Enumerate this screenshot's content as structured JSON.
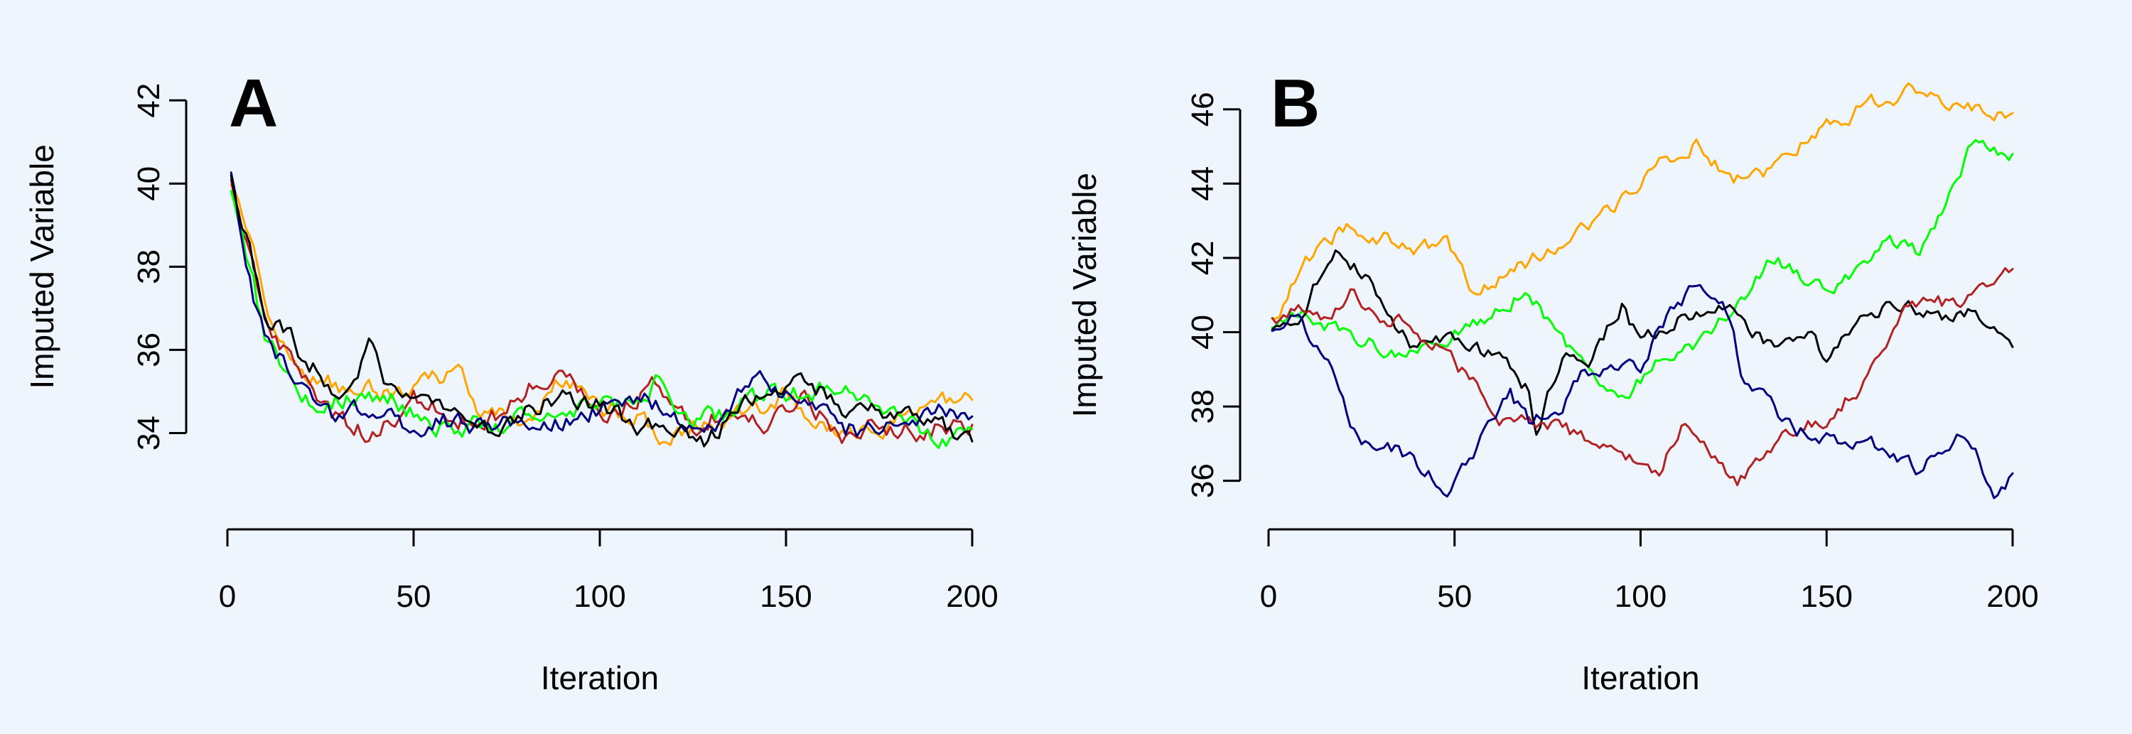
{
  "chart_data": [
    {
      "type": "line",
      "panel_label": "A",
      "xlabel": "Iteration",
      "ylabel": "Imputed Variable",
      "xlim": [
        0,
        200
      ],
      "ylim": [
        33.0,
        42.5
      ],
      "xticks": [
        0,
        50,
        100,
        150,
        200
      ],
      "yticks": [
        34,
        36,
        38,
        40,
        42
      ],
      "grid": false,
      "legend": "none",
      "series": [
        {
          "color": "#ffa500",
          "anchors": [
            [
              1,
              39.8
            ],
            [
              6,
              38.6
            ],
            [
              12,
              36.8
            ],
            [
              20,
              35.5
            ],
            [
              30,
              35.1
            ],
            [
              45,
              34.9
            ],
            [
              55,
              35.3
            ],
            [
              62,
              35.6
            ],
            [
              68,
              34.4
            ],
            [
              80,
              34.3
            ],
            [
              90,
              35.3
            ],
            [
              100,
              34.6
            ],
            [
              110,
              34.5
            ],
            [
              118,
              33.8
            ],
            [
              125,
              34.2
            ],
            [
              140,
              34.5
            ],
            [
              150,
              34.9
            ],
            [
              160,
              34.1
            ],
            [
              170,
              34.0
            ],
            [
              180,
              34.3
            ],
            [
              190,
              34.5
            ],
            [
              196,
              34.9
            ],
            [
              200,
              34.8
            ]
          ]
        },
        {
          "color": "#b22222",
          "anchors": [
            [
              1,
              40.1
            ],
            [
              5,
              38.6
            ],
            [
              10,
              36.8
            ],
            [
              18,
              35.5
            ],
            [
              28,
              34.4
            ],
            [
              38,
              34.0
            ],
            [
              50,
              34.8
            ],
            [
              60,
              34.4
            ],
            [
              70,
              34.2
            ],
            [
              80,
              35.0
            ],
            [
              88,
              35.5
            ],
            [
              95,
              35.0
            ],
            [
              105,
              34.4
            ],
            [
              115,
              35.3
            ],
            [
              125,
              34.2
            ],
            [
              135,
              34.6
            ],
            [
              145,
              34.1
            ],
            [
              155,
              34.8
            ],
            [
              165,
              34.0
            ],
            [
              175,
              34.2
            ],
            [
              185,
              34.1
            ],
            [
              200,
              34.2
            ]
          ]
        },
        {
          "color": "#00ff00",
          "anchors": [
            [
              1,
              40.0
            ],
            [
              5,
              38.3
            ],
            [
              10,
              36.4
            ],
            [
              18,
              35.2
            ],
            [
              25,
              34.6
            ],
            [
              35,
              35.0
            ],
            [
              45,
              34.8
            ],
            [
              55,
              34.2
            ],
            [
              65,
              34.1
            ],
            [
              75,
              34.3
            ],
            [
              85,
              34.5
            ],
            [
              95,
              34.7
            ],
            [
              105,
              34.6
            ],
            [
              115,
              35.2
            ],
            [
              125,
              34.3
            ],
            [
              135,
              34.5
            ],
            [
              145,
              34.9
            ],
            [
              155,
              35.0
            ],
            [
              165,
              35.1
            ],
            [
              175,
              34.8
            ],
            [
              185,
              34.2
            ],
            [
              192,
              33.8
            ],
            [
              200,
              34.1
            ]
          ]
        },
        {
          "color": "#000080",
          "anchors": [
            [
              1,
              40.2
            ],
            [
              5,
              38.0
            ],
            [
              10,
              36.2
            ],
            [
              18,
              35.3
            ],
            [
              28,
              34.5
            ],
            [
              38,
              34.6
            ],
            [
              48,
              34.2
            ],
            [
              58,
              34.3
            ],
            [
              68,
              34.1
            ],
            [
              78,
              34.4
            ],
            [
              88,
              34.3
            ],
            [
              98,
              34.5
            ],
            [
              108,
              34.9
            ],
            [
              118,
              34.6
            ],
            [
              128,
              34.0
            ],
            [
              138,
              34.9
            ],
            [
              145,
              35.3
            ],
            [
              155,
              34.6
            ],
            [
              165,
              34.1
            ],
            [
              175,
              34.0
            ],
            [
              185,
              34.4
            ],
            [
              195,
              34.6
            ],
            [
              200,
              34.4
            ]
          ]
        },
        {
          "color": "#000000",
          "anchors": [
            [
              1,
              40.3
            ],
            [
              5,
              38.8
            ],
            [
              10,
              37.0
            ],
            [
              20,
              35.9
            ],
            [
              28,
              35.1
            ],
            [
              35,
              35.2
            ],
            [
              38,
              36.2
            ],
            [
              42,
              35.1
            ],
            [
              50,
              34.8
            ],
            [
              60,
              34.6
            ],
            [
              70,
              34.2
            ],
            [
              80,
              34.5
            ],
            [
              90,
              34.9
            ],
            [
              100,
              34.7
            ],
            [
              110,
              34.2
            ],
            [
              120,
              34.0
            ],
            [
              128,
              33.8
            ],
            [
              135,
              34.3
            ],
            [
              142,
              35.0
            ],
            [
              150,
              35.2
            ],
            [
              160,
              34.9
            ],
            [
              170,
              34.4
            ],
            [
              180,
              34.6
            ],
            [
              190,
              34.3
            ],
            [
              200,
              33.8
            ]
          ]
        }
      ]
    },
    {
      "type": "line",
      "panel_label": "B",
      "xlabel": "Iteration",
      "ylabel": "Imputed Variable",
      "xlim": [
        0,
        200
      ],
      "ylim": [
        35.4,
        46.8
      ],
      "xticks": [
        0,
        50,
        100,
        150,
        200
      ],
      "yticks": [
        36,
        38,
        40,
        42,
        44,
        46
      ],
      "grid": false,
      "legend": "none",
      "series": [
        {
          "color": "#ffa500",
          "anchors": [
            [
              1,
              40.2
            ],
            [
              8,
              41.6
            ],
            [
              15,
              42.4
            ],
            [
              22,
              42.9
            ],
            [
              30,
              42.6
            ],
            [
              40,
              42.3
            ],
            [
              48,
              42.4
            ],
            [
              55,
              41.1
            ],
            [
              65,
              41.6
            ],
            [
              75,
              42.2
            ],
            [
              85,
              42.8
            ],
            [
              95,
              43.6
            ],
            [
              105,
              44.6
            ],
            [
              115,
              45.1
            ],
            [
              125,
              44.0
            ],
            [
              135,
              44.4
            ],
            [
              145,
              45.3
            ],
            [
              155,
              45.8
            ],
            [
              165,
              46.3
            ],
            [
              170,
              46.4
            ],
            [
              177,
              46.6
            ],
            [
              185,
              46.1
            ],
            [
              195,
              45.9
            ],
            [
              200,
              45.9
            ]
          ]
        },
        {
          "color": "#00ff00",
          "anchors": [
            [
              1,
              40.1
            ],
            [
              8,
              40.5
            ],
            [
              15,
              40.2
            ],
            [
              25,
              39.8
            ],
            [
              35,
              39.4
            ],
            [
              45,
              39.6
            ],
            [
              55,
              40.3
            ],
            [
              63,
              40.6
            ],
            [
              70,
              41.2
            ],
            [
              78,
              39.8
            ],
            [
              85,
              39.0
            ],
            [
              95,
              38.2
            ],
            [
              105,
              39.3
            ],
            [
              115,
              39.7
            ],
            [
              125,
              40.6
            ],
            [
              135,
              42.0
            ],
            [
              142,
              41.6
            ],
            [
              150,
              41.0
            ],
            [
              158,
              41.7
            ],
            [
              165,
              42.5
            ],
            [
              175,
              42.1
            ],
            [
              185,
              44.2
            ],
            [
              190,
              45.3
            ],
            [
              195,
              44.9
            ],
            [
              200,
              44.8
            ]
          ]
        },
        {
          "color": "#000000",
          "anchors": [
            [
              1,
              40.2
            ],
            [
              6,
              39.9
            ],
            [
              12,
              41.2
            ],
            [
              18,
              42.1
            ],
            [
              25,
              41.6
            ],
            [
              32,
              40.6
            ],
            [
              40,
              39.4
            ],
            [
              48,
              40.0
            ],
            [
              55,
              39.6
            ],
            [
              62,
              39.3
            ],
            [
              70,
              38.4
            ],
            [
              72,
              37.3
            ],
            [
              75,
              38.2
            ],
            [
              80,
              39.6
            ],
            [
              85,
              38.9
            ],
            [
              90,
              39.8
            ],
            [
              95,
              40.8
            ],
            [
              100,
              39.7
            ],
            [
              108,
              40.2
            ],
            [
              115,
              40.6
            ],
            [
              122,
              40.8
            ],
            [
              128,
              40.2
            ],
            [
              135,
              39.7
            ],
            [
              145,
              40.0
            ],
            [
              150,
              39.3
            ],
            [
              160,
              40.6
            ],
            [
              170,
              40.7
            ],
            [
              180,
              40.4
            ],
            [
              190,
              40.6
            ],
            [
              195,
              40.2
            ],
            [
              200,
              39.6
            ]
          ]
        },
        {
          "color": "#b22222",
          "anchors": [
            [
              1,
              40.3
            ],
            [
              8,
              40.6
            ],
            [
              15,
              40.2
            ],
            [
              22,
              41.2
            ],
            [
              28,
              40.5
            ],
            [
              35,
              40.3
            ],
            [
              45,
              39.6
            ],
            [
              55,
              38.6
            ],
            [
              62,
              37.6
            ],
            [
              70,
              37.6
            ],
            [
              78,
              37.5
            ],
            [
              85,
              37.1
            ],
            [
              95,
              36.6
            ],
            [
              105,
              36.3
            ],
            [
              112,
              37.6
            ],
            [
              120,
              36.6
            ],
            [
              126,
              35.9
            ],
            [
              133,
              36.6
            ],
            [
              140,
              37.3
            ],
            [
              150,
              37.7
            ],
            [
              160,
              38.6
            ],
            [
              170,
              40.6
            ],
            [
              178,
              40.9
            ],
            [
              185,
              40.7
            ],
            [
              195,
              41.4
            ],
            [
              200,
              41.7
            ]
          ]
        },
        {
          "color": "#000080",
          "anchors": [
            [
              1,
              40.1
            ],
            [
              8,
              40.4
            ],
            [
              15,
              39.4
            ],
            [
              22,
              37.6
            ],
            [
              28,
              36.8
            ],
            [
              35,
              36.9
            ],
            [
              42,
              36.2
            ],
            [
              48,
              35.8
            ],
            [
              55,
              36.8
            ],
            [
              60,
              37.6
            ],
            [
              65,
              38.3
            ],
            [
              70,
              37.6
            ],
            [
              78,
              38.0
            ],
            [
              85,
              38.9
            ],
            [
              92,
              39.2
            ],
            [
              100,
              39.0
            ],
            [
              108,
              40.6
            ],
            [
              115,
              41.2
            ],
            [
              122,
              40.9
            ],
            [
              128,
              38.6
            ],
            [
              135,
              38.0
            ],
            [
              142,
              37.4
            ],
            [
              150,
              37.1
            ],
            [
              160,
              37.0
            ],
            [
              168,
              36.8
            ],
            [
              175,
              36.2
            ],
            [
              180,
              37.0
            ],
            [
              185,
              37.2
            ],
            [
              190,
              36.6
            ],
            [
              196,
              35.6
            ],
            [
              200,
              36.2
            ]
          ]
        }
      ]
    }
  ]
}
